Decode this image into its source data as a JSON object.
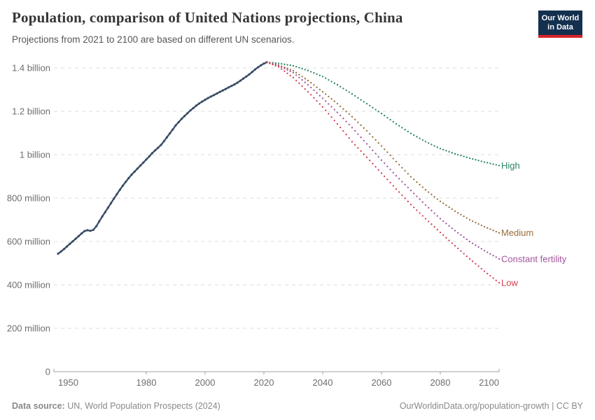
{
  "header": {
    "title": "Population, comparison of United Nations projections, China",
    "subtitle": "Projections from 2021 to 2100 are based on different UN scenarios.",
    "logo": {
      "line1": "Our World",
      "line2": "in Data"
    }
  },
  "footer": {
    "source_label": "Data source:",
    "source_text": " UN, World Population Prospects (2024)",
    "right_text": "OurWorldinData.org/population-growth | CC BY"
  },
  "colors": {
    "historical": "#384c63",
    "high": "#2c8465",
    "medium": "#996d39",
    "constant_fertility": "#a2559c",
    "low": "#d73c50",
    "gridline": "#dcdcdc",
    "axis": "#a0a0a0",
    "tick_text": "#6e6e6e",
    "logo_bg": "#14304f",
    "logo_accent": "#d8242c"
  },
  "chart_data": {
    "type": "line",
    "title": "Population, comparison of United Nations projections, China",
    "subtitle": "Projections from 2021 to 2100 are based on different UN scenarios.",
    "xlabel": "",
    "ylabel": "",
    "unit": "people (millions)",
    "grid": "horizontal-dashed",
    "legend_position": "right-of-line-ends",
    "x_axis": {
      "min": 1950,
      "max": 2100,
      "ticks": [
        1950,
        1980,
        2000,
        2020,
        2040,
        2060,
        2080,
        2100
      ]
    },
    "y_axis": {
      "min": 0,
      "max": 1400,
      "ticks": [
        {
          "value": 0,
          "label": "0"
        },
        {
          "value": 200,
          "label": "200 million"
        },
        {
          "value": 400,
          "label": "400 million"
        },
        {
          "value": 600,
          "label": "600 million"
        },
        {
          "value": 800,
          "label": "800 million"
        },
        {
          "value": 1000,
          "label": "1 billion"
        },
        {
          "value": 1200,
          "label": "1.2 billion"
        },
        {
          "value": 1400,
          "label": "1.4 billion"
        }
      ]
    },
    "series": [
      {
        "name": "historical-estimates",
        "label": "",
        "color": "#384c63",
        "style": "solid-with-markers",
        "start_year": 1950,
        "values": [
          544,
          554,
          565,
          577,
          589,
          601,
          613,
          625,
          637,
          648,
          652,
          649,
          654,
          670,
          693,
          715,
          735,
          756,
          777,
          798,
          818,
          838,
          857,
          875,
          892,
          908,
          922,
          936,
          950,
          964,
          978,
          992,
          1007,
          1020,
          1032,
          1045,
          1062,
          1080,
          1098,
          1116,
          1135,
          1150,
          1165,
          1178,
          1191,
          1204,
          1215,
          1226,
          1236,
          1245,
          1253,
          1261,
          1268,
          1275,
          1282,
          1289,
          1296,
          1303,
          1310,
          1317,
          1324,
          1332,
          1341,
          1351,
          1360,
          1370,
          1381,
          1393,
          1403,
          1412,
          1420,
          1426
        ]
      },
      {
        "name": "high",
        "label": "High",
        "color": "#2c8465",
        "style": "dotted",
        "years": [
          2021,
          2025,
          2030,
          2035,
          2040,
          2045,
          2050,
          2055,
          2060,
          2065,
          2070,
          2075,
          2080,
          2085,
          2090,
          2095,
          2100
        ],
        "values": [
          1426,
          1421,
          1410,
          1388,
          1360,
          1322,
          1280,
          1235,
          1190,
          1142,
          1098,
          1060,
          1028,
          1004,
          984,
          966,
          950
        ]
      },
      {
        "name": "medium",
        "label": "Medium",
        "color": "#996d39",
        "style": "dotted",
        "years": [
          2021,
          2025,
          2030,
          2035,
          2040,
          2045,
          2050,
          2055,
          2060,
          2065,
          2070,
          2075,
          2080,
          2085,
          2090,
          2095,
          2100
        ],
        "values": [
          1426,
          1413,
          1387,
          1342,
          1290,
          1235,
          1175,
          1110,
          1040,
          968,
          898,
          838,
          785,
          740,
          700,
          668,
          640
        ]
      },
      {
        "name": "constant-fertility",
        "label": "Constant fertility",
        "color": "#a2559c",
        "style": "dotted",
        "years": [
          2021,
          2025,
          2030,
          2035,
          2040,
          2045,
          2050,
          2055,
          2060,
          2065,
          2070,
          2075,
          2080,
          2085,
          2090,
          2095,
          2100
        ],
        "values": [
          1426,
          1410,
          1378,
          1322,
          1260,
          1195,
          1125,
          1050,
          975,
          903,
          835,
          768,
          705,
          650,
          600,
          558,
          520
        ]
      },
      {
        "name": "low",
        "label": "Low",
        "color": "#d73c50",
        "style": "dotted",
        "years": [
          2021,
          2025,
          2030,
          2035,
          2040,
          2045,
          2050,
          2055,
          2060,
          2065,
          2070,
          2075,
          2080,
          2085,
          2090,
          2095,
          2100
        ],
        "values": [
          1426,
          1405,
          1355,
          1290,
          1220,
          1142,
          1060,
          988,
          915,
          842,
          770,
          705,
          642,
          580,
          520,
          463,
          410
        ]
      }
    ]
  }
}
